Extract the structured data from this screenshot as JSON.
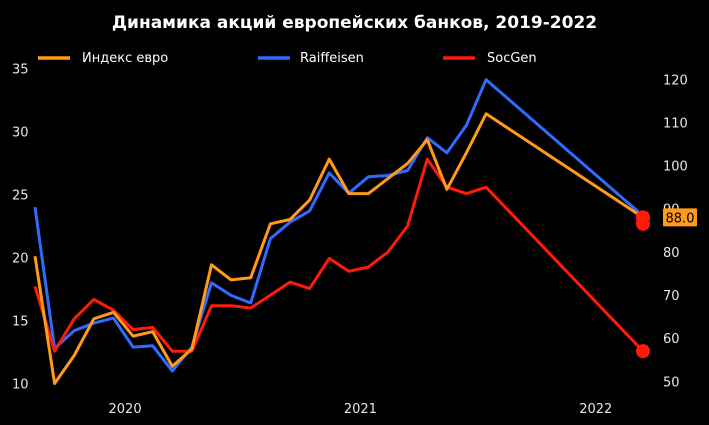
{
  "chart_data": {
    "type": "line",
    "title": "Динамика акций европейских банков, 2019-2022",
    "x": [
      "2019-08",
      "2019-09",
      "2019-10",
      "2019-11",
      "2019-12",
      "2020-01",
      "2020-02",
      "2020-03",
      "2020-04",
      "2020-05",
      "2020-06",
      "2020-07",
      "2020-08",
      "2020-09",
      "2020-10",
      "2020-11",
      "2020-12",
      "2021-01",
      "2021-02",
      "2021-03",
      "2021-04",
      "2021-05",
      "2021-06",
      "2021-07",
      "2021-08",
      "2021-09",
      "2021-10",
      "2021-11",
      "2021-12",
      "2022-01",
      "2022-02",
      "2022-03"
    ],
    "x_tick_labels": [
      "2020",
      "2021",
      "2022"
    ],
    "y_left_ticks": [
      10,
      15,
      20,
      25,
      30,
      35
    ],
    "y_right_ticks": [
      50,
      60,
      70,
      80,
      90,
      100,
      110,
      120
    ],
    "y_left_range": [
      9.5,
      35.5
    ],
    "y_right_range": [
      48,
      124
    ],
    "legend_position": "top",
    "series": [
      {
        "name": "Индекс евро",
        "axis": "right",
        "color": "#ff9a1a",
        "values": [
          79,
          49.5,
          56,
          64.5,
          66,
          60.5,
          61.5,
          53.5,
          57.5,
          77,
          73.5,
          74,
          86.5,
          87.5,
          92,
          101.5,
          93.5,
          93.5,
          97,
          100.5,
          106,
          94.5,
          103,
          112,
          null,
          null,
          null,
          null,
          null,
          null,
          null,
          88
        ],
        "end_label": "88.0"
      },
      {
        "name": "Raiffeisen",
        "axis": "left",
        "color": "#2f6bff",
        "values": [
          24,
          12.8,
          14.2,
          14.8,
          15.2,
          12.9,
          13,
          11,
          12.9,
          18,
          17,
          16.4,
          21.5,
          22.8,
          23.7,
          26.7,
          25.1,
          26.4,
          26.5,
          26.9,
          29.5,
          28.3,
          30.5,
          34.1,
          null,
          null,
          null,
          null,
          null,
          null,
          null,
          23.3
        ]
      },
      {
        "name": "SocGen",
        "axis": "right",
        "color": "#ff1a0a",
        "values": [
          72,
          57,
          64.5,
          69,
          66.5,
          62,
          62.5,
          57,
          57,
          67.5,
          67.5,
          67,
          70,
          73,
          71.5,
          78.5,
          75.5,
          76.5,
          80,
          86,
          101.5,
          95,
          93.5,
          95,
          null,
          null,
          null,
          null,
          null,
          null,
          null,
          57
        ]
      }
    ],
    "extra_markers": [
      {
        "series": "SocGen",
        "x": "2022-03",
        "value": 86.5,
        "axis": "right"
      }
    ]
  }
}
